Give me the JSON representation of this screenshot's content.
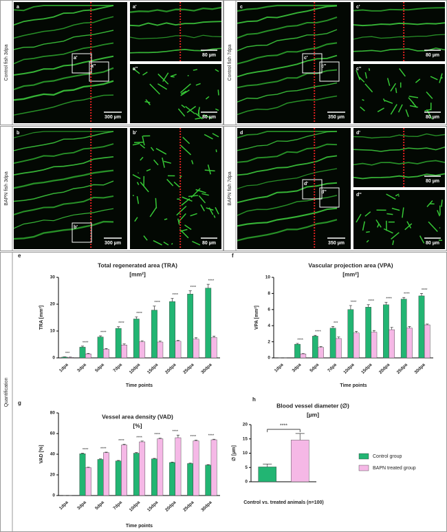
{
  "figure": {
    "section": "Quantification",
    "panels": [
      {
        "letter": "a",
        "side": "Control fish 3dpa",
        "scale": "300 µm",
        "insets": [
          {
            "letter": "a'",
            "scale": "80 µm"
          },
          {
            "letter": "a''",
            "scale": "80 µm"
          }
        ]
      },
      {
        "letter": "c",
        "side": "Control fish 7dpa",
        "scale": "350 µm",
        "insets": [
          {
            "letter": "c'",
            "scale": "80 µm"
          },
          {
            "letter": "c''",
            "scale": "80 µm"
          }
        ]
      },
      {
        "letter": "b",
        "side": "BAPN fish 3dpa",
        "scale": "300 µm",
        "insets": [
          {
            "letter": "b'",
            "scale": "80 µm"
          }
        ]
      },
      {
        "letter": "d",
        "side": "BAPN fish 7dpa",
        "scale": "350 µm",
        "insets": [
          {
            "letter": "d'",
            "scale": "80 µm"
          },
          {
            "letter": "d''",
            "scale": "80 µm"
          }
        ]
      }
    ]
  },
  "chart_data": [
    {
      "type": "bar",
      "letter": "e",
      "title": "Total regenerated area (TRA)",
      "subtitle": "[mm²]",
      "xlabel": "Time points",
      "ylabel": "TRA [mm²]",
      "categories": [
        "1dpa",
        "3dpa",
        "5dpa",
        "7dpa",
        "10dpa",
        "15dpa",
        "20dpa",
        "25dpa",
        "30dpa"
      ],
      "ylim": [
        0,
        30
      ],
      "yticks": [
        0,
        10,
        20,
        30
      ],
      "series": [
        {
          "name": "Control group",
          "color": "#22b573",
          "values": [
            0.3,
            4,
            7.8,
            11,
            14.5,
            17.8,
            21,
            23.8,
            26
          ],
          "errors": [
            0.1,
            0.4,
            0.4,
            0.6,
            0.8,
            1.5,
            1.2,
            1.2,
            1.4
          ]
        },
        {
          "name": "BAPN treated group",
          "color": "#f5b8e6",
          "values": [
            0.2,
            1.5,
            3.2,
            4.8,
            6.0,
            5.9,
            6.2,
            7.0,
            7.6
          ],
          "errors": [
            0.1,
            0.2,
            0.3,
            0.4,
            0.4,
            0.4,
            0.3,
            0.5,
            0.5
          ]
        }
      ],
      "annotations": [
        "***",
        "****",
        "****",
        "****",
        "****",
        "****",
        "****",
        "****",
        "****"
      ]
    },
    {
      "type": "bar",
      "letter": "f",
      "title": "Vascular projection area (VPA)",
      "subtitle": "[mm²]",
      "xlabel": "Time points",
      "ylabel": "VPA [mm²]",
      "categories": [
        "1dpa",
        "3dpa",
        "5dpa",
        "7dpa",
        "10dpa",
        "15dpa",
        "20dpa",
        "25dpa",
        "30dpa"
      ],
      "ylim": [
        0,
        10
      ],
      "yticks": [
        0,
        2,
        4,
        6,
        8,
        10
      ],
      "series": [
        {
          "name": "Control group",
          "color": "#22b573",
          "values": [
            0,
            1.7,
            2.7,
            3.7,
            6.0,
            6.3,
            6.6,
            7.3,
            7.7
          ],
          "errors": [
            0,
            0.1,
            0.1,
            0.2,
            0.5,
            0.3,
            0.3,
            0.2,
            0.3
          ]
        },
        {
          "name": "BAPN treated group",
          "color": "#f5b8e6",
          "values": [
            0,
            0.5,
            1.3,
            2.4,
            3.1,
            3.2,
            3.5,
            3.7,
            4.1
          ],
          "errors": [
            0,
            0.05,
            0.1,
            0.2,
            0.2,
            0.2,
            0.3,
            0.2,
            0.1
          ]
        }
      ],
      "annotations": [
        null,
        "****",
        "****",
        "***",
        "****",
        "****",
        "****",
        "****",
        "****"
      ]
    },
    {
      "type": "bar",
      "letter": "g",
      "title": "Vessel area density (VAD)",
      "subtitle": "[%]",
      "xlabel": "Time points",
      "ylabel": "VAD [%]",
      "categories": [
        "1dpa",
        "3dpa",
        "5dpa",
        "7dpa",
        "10dpa",
        "15dpa",
        "20dpa",
        "25dpa",
        "30dpa"
      ],
      "ylim": [
        0,
        80
      ],
      "yticks": [
        0,
        20,
        40,
        60,
        80
      ],
      "series": [
        {
          "name": "Control group",
          "color": "#22b573",
          "values": [
            0,
            40.5,
            35,
            33.5,
            41,
            35.5,
            32,
            31,
            29.5
          ],
          "errors": [
            0,
            0.5,
            0.5,
            0.5,
            0.6,
            0.5,
            0.4,
            0.4,
            0.4
          ]
        },
        {
          "name": "BAPN treated group",
          "color": "#f5b8e6",
          "values": [
            0,
            27,
            41.5,
            49,
            52,
            55,
            56,
            53,
            54
          ],
          "errors": [
            0,
            0.4,
            0.5,
            0.6,
            0.8,
            0.5,
            2.5,
            0.6,
            0.5
          ]
        }
      ],
      "annotations": [
        null,
        "****",
        "****",
        "****",
        "****",
        "****",
        "****",
        "****",
        "****"
      ]
    },
    {
      "type": "bar",
      "letter": "h",
      "title": "Blood vessel diameter (∅)",
      "subtitle": "[µm]",
      "xlabel": "Control vs. treated animals (n=100)",
      "ylabel": "∅ [µm]",
      "ylim": [
        0,
        20
      ],
      "yticks": [
        0,
        5,
        10,
        15,
        20
      ],
      "series": [
        {
          "name": "Control group",
          "color": "#22b573",
          "values": [
            5.2
          ],
          "errors": [
            1.0
          ]
        },
        {
          "name": "BAPN treated group",
          "color": "#f5b8e6",
          "values": [
            14.6
          ],
          "errors": [
            2.3
          ]
        }
      ],
      "annotation": "****"
    }
  ]
}
